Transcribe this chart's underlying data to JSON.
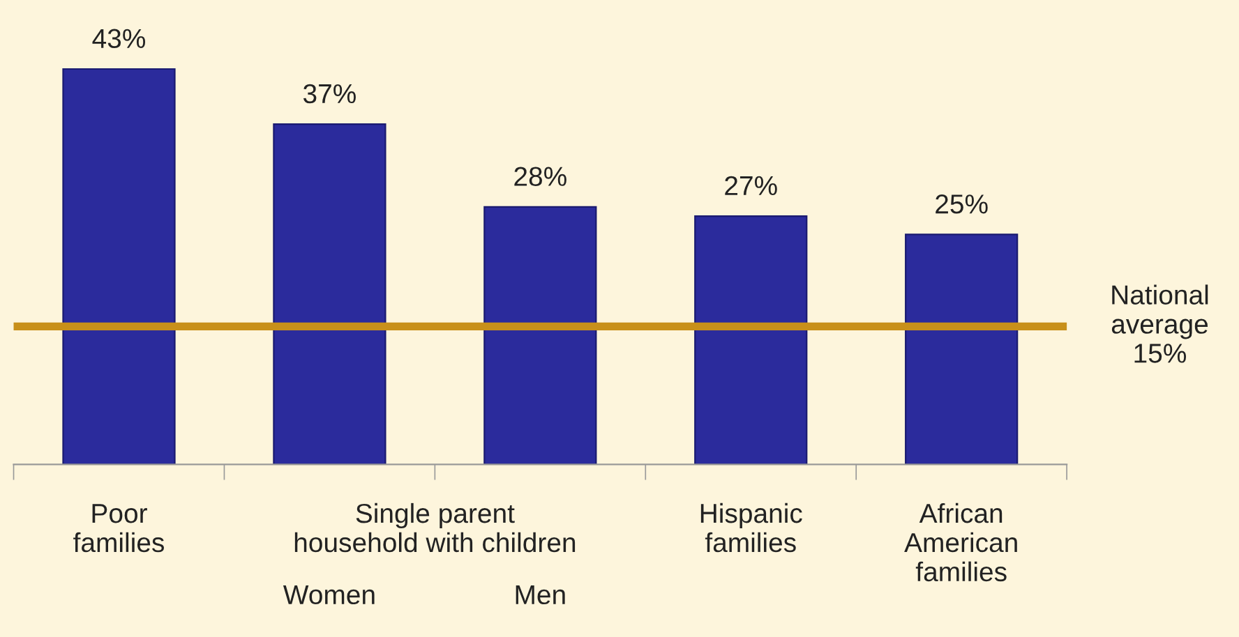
{
  "chart_data": {
    "type": "bar",
    "categories": [
      "Poor\nfamilies",
      "Women",
      "Men",
      "Hispanic\nfamilies",
      "African\nAmerican\nfamilies"
    ],
    "values": [
      43,
      37,
      28,
      27,
      25
    ],
    "value_labels": [
      "43%",
      "37%",
      "28%",
      "27%",
      "25%"
    ],
    "color": "#2b2b9c",
    "tick_labels": "x",
    "annotations": [
      "Single parent\nhousehold with children"
    ],
    "ref_lines": [
      {
        "axis": "y",
        "value": 15,
        "label": "National\naverage\n15%",
        "color": "#c8901a"
      }
    ]
  }
}
